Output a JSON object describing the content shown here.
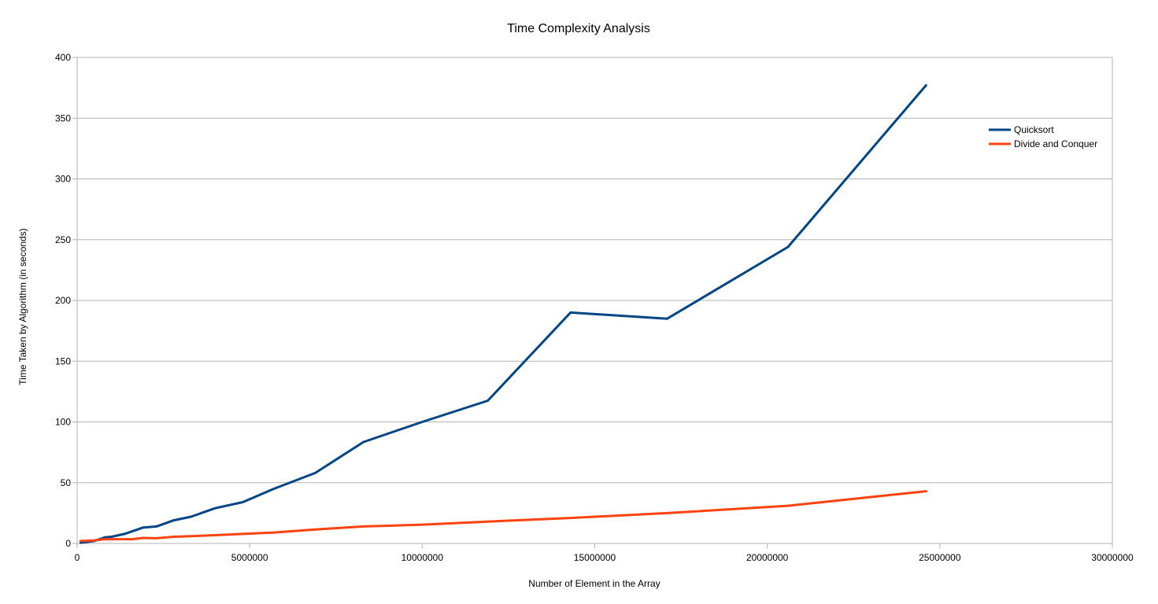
{
  "chart_data": {
    "type": "line",
    "title": "Time Complexity Analysis",
    "xlabel": "Number of Element in the Array",
    "ylabel": "Time Taken by Algorithm (in seconds)",
    "xlim": [
      0,
      30000000
    ],
    "ylim": [
      0,
      400
    ],
    "x_ticks": [
      0,
      5000000,
      10000000,
      15000000,
      20000000,
      25000000,
      30000000
    ],
    "x_tick_labels": [
      "0",
      "5000000",
      "10000000",
      "15000000",
      "20000000",
      "25000000",
      "30000000"
    ],
    "y_ticks": [
      0,
      50,
      100,
      150,
      200,
      250,
      300,
      350,
      400
    ],
    "y_tick_labels": [
      "0",
      "50",
      "100",
      "150",
      "200",
      "250",
      "300",
      "350",
      "400"
    ],
    "grid": "horizontal",
    "legend": "right",
    "series": [
      {
        "name": "Quicksort",
        "color": "#004586",
        "points": [
          [
            100000,
            0.5
          ],
          [
            500000,
            2
          ],
          [
            800000,
            5
          ],
          [
            1000000,
            5.5
          ],
          [
            1400000,
            8
          ],
          [
            1900000,
            13
          ],
          [
            2300000,
            14
          ],
          [
            2800000,
            19
          ],
          [
            3300000,
            22
          ],
          [
            4000000,
            29
          ],
          [
            4800000,
            34
          ],
          [
            5700000,
            45
          ],
          [
            6900000,
            58
          ],
          [
            8300000,
            83.5
          ],
          [
            10000000,
            100
          ],
          [
            11900000,
            117.5
          ],
          [
            14300000,
            190
          ],
          [
            17100000,
            185
          ],
          [
            20600000,
            244
          ],
          [
            24600000,
            377
          ]
        ]
      },
      {
        "name": "Divide and Conquer",
        "color": "#ff420e",
        "points": [
          [
            100000,
            2
          ],
          [
            500000,
            2.5
          ],
          [
            800000,
            3.5
          ],
          [
            1000000,
            3.5
          ],
          [
            1400000,
            3.5
          ],
          [
            1600000,
            3.5
          ],
          [
            1900000,
            4.5
          ],
          [
            2300000,
            4.3
          ],
          [
            2800000,
            5.5
          ],
          [
            3300000,
            6
          ],
          [
            4000000,
            6.8
          ],
          [
            4800000,
            7.8
          ],
          [
            5700000,
            9
          ],
          [
            6900000,
            11.5
          ],
          [
            8300000,
            14
          ],
          [
            10000000,
            15.5
          ],
          [
            11900000,
            18
          ],
          [
            14300000,
            21
          ],
          [
            17100000,
            25
          ],
          [
            20600000,
            31
          ],
          [
            24600000,
            43
          ]
        ]
      }
    ]
  }
}
